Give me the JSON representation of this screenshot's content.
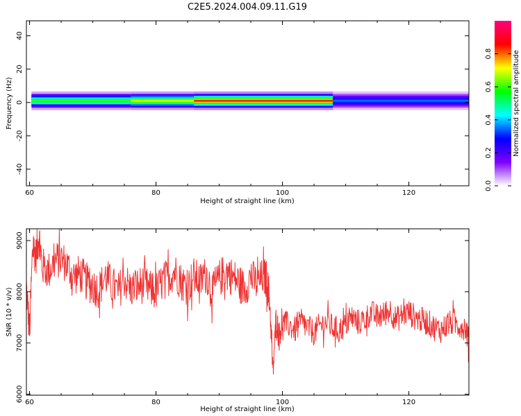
{
  "title": "C2E5.2024.004.09.11.G19",
  "chart_data": [
    {
      "type": "heatmap",
      "title": "",
      "xlabel": "Height of straight line (km)",
      "ylabel": "Frequency (Hz)",
      "xlim": [
        59.5,
        129.5
      ],
      "ylim": [
        -50,
        49
      ],
      "xticks": [
        60,
        80,
        100,
        120
      ],
      "xtick_labels": [
        "60",
        "80",
        "100",
        "120"
      ],
      "yticks": [
        -40,
        -20,
        0,
        20,
        40
      ],
      "ytick_labels": [
        "-40",
        "-20",
        "0",
        "20",
        "40"
      ],
      "colorbar": {
        "label": "Normalized spectral amplitude",
        "range": [
          0,
          1
        ],
        "ticks": [
          0.0,
          0.2,
          0.4,
          0.6,
          0.8
        ],
        "tick_labels": [
          "0.0",
          "0.2",
          "0.4",
          "0.6",
          "0.8"
        ],
        "colors": [
          "#ffffff",
          "#8000ff",
          "#0000ff",
          "#00ffff",
          "#00ff00",
          "#ffff00",
          "#ff0000",
          "#ff0080"
        ]
      },
      "band": {
        "center_hz": 1,
        "halfwidth_hz": 3,
        "segments": [
          {
            "x_start": 60.3,
            "x_end": 76,
            "peak_amplitude": 0.6
          },
          {
            "x_start": 76,
            "x_end": 86,
            "peak_amplitude": 0.7
          },
          {
            "x_start": 86,
            "x_end": 108,
            "peak_amplitude": 0.85
          },
          {
            "x_start": 108,
            "x_end": 129.5,
            "peak_amplitude": 0.35
          }
        ]
      }
    },
    {
      "type": "line",
      "title": "",
      "xlabel": "Height of straight line (km)",
      "ylabel": "SNR (10 * v/v)",
      "xlim": [
        59.5,
        129.5
      ],
      "ylim": [
        5980,
        9230
      ],
      "xticks": [
        60,
        80,
        100,
        120
      ],
      "xtick_labels": [
        "60",
        "80",
        "100",
        "120"
      ],
      "yticks": [
        6000,
        7000,
        8000,
        9000
      ],
      "ytick_labels": [
        "6000",
        "7000",
        "8000",
        "9000"
      ],
      "series": [
        {
          "color": "#ee3333",
          "x": [
            59.5,
            60,
            60.5,
            61,
            61.5,
            62,
            63,
            64,
            65,
            66,
            67,
            68,
            69,
            70,
            71,
            72,
            73,
            74,
            75,
            76,
            77,
            78,
            79,
            80,
            81,
            82,
            83,
            84,
            85,
            86,
            87,
            88,
            89,
            90,
            91,
            92,
            93,
            94,
            95,
            96,
            97,
            97.5,
            98,
            98.5,
            99,
            99.5,
            100,
            101,
            102,
            103,
            104,
            105,
            106,
            107,
            108,
            109,
            110,
            111,
            112,
            113,
            114,
            115,
            116,
            117,
            118,
            119,
            120,
            121,
            122,
            123,
            124,
            125,
            126,
            127,
            128,
            129,
            129.5
          ],
          "values": [
            8100,
            7200,
            8900,
            8700,
            9100,
            8500,
            8400,
            8600,
            8650,
            8500,
            8300,
            8350,
            8200,
            8100,
            8050,
            8300,
            8150,
            8000,
            8250,
            8050,
            8100,
            8150,
            8050,
            8000,
            8200,
            8300,
            8400,
            8200,
            8100,
            8300,
            8200,
            8350,
            8000,
            8250,
            8400,
            8300,
            8200,
            8050,
            8300,
            8150,
            8300,
            8250,
            7800,
            6400,
            7500,
            7150,
            7400,
            7350,
            7250,
            7400,
            7300,
            7200,
            7350,
            7400,
            7300,
            7250,
            7350,
            7500,
            7400,
            7450,
            7600,
            7500,
            7550,
            7650,
            7450,
            7550,
            7600,
            7500,
            7450,
            7400,
            7300,
            7250,
            7350,
            7400,
            7350,
            7300,
            7000
          ]
        }
      ]
    }
  ]
}
